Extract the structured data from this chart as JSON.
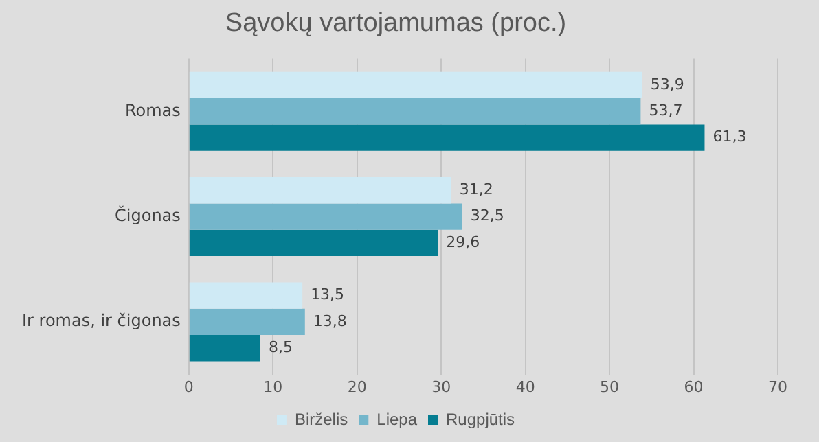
{
  "chart_data": {
    "type": "bar",
    "orientation": "horizontal",
    "title": "Sąvokų vartojamumas (proc.)",
    "categories": [
      "Romas",
      "Čigonas",
      "Ir romas, ir čigonas"
    ],
    "series": [
      {
        "name": "Birželis",
        "color": "#cfeaf5",
        "values": [
          53.9,
          31.2,
          13.5
        ],
        "value_labels": [
          "53,9",
          "31,2",
          "13,5"
        ]
      },
      {
        "name": "Liepa",
        "color": "#74b6cb",
        "values": [
          53.7,
          32.5,
          13.8
        ],
        "value_labels": [
          "53,7",
          "32,5",
          "13,8"
        ]
      },
      {
        "name": "Rugpjūtis",
        "color": "#057d91",
        "values": [
          61.3,
          29.6,
          8.5
        ],
        "value_labels": [
          "61,3",
          "29,6",
          "8,5"
        ]
      }
    ],
    "xlim": [
      0,
      70
    ],
    "xticks": [
      0,
      10,
      20,
      30,
      40,
      50,
      60,
      70
    ],
    "grid": "x",
    "legend": "bottom"
  }
}
